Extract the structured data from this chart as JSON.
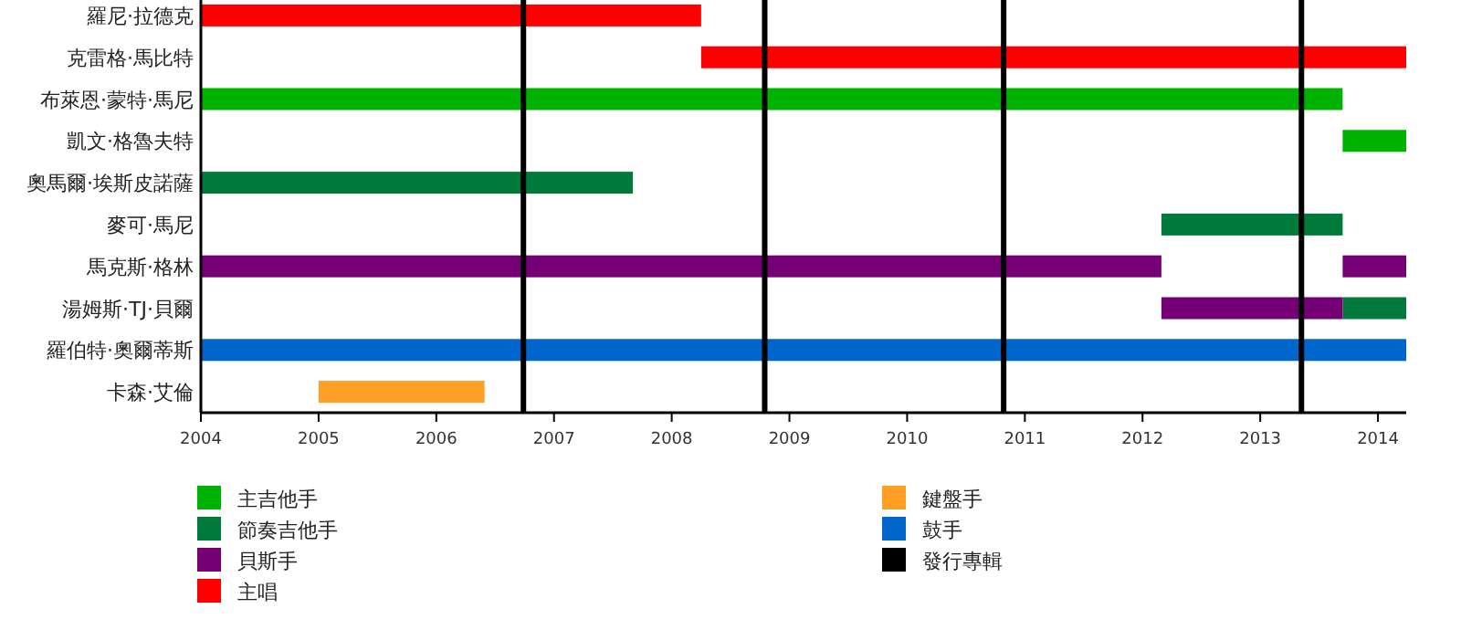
{
  "chart_data": {
    "type": "bar",
    "orientation": "horizontal",
    "categories": [
      "羅尼·拉德克",
      "克雷格·馬比特",
      "布萊恩·蒙特·馬尼",
      "凱文·格魯夫特",
      "奧馬爾·埃斯皮諾薩",
      "麥可·馬尼",
      "馬克斯·格林",
      "湯姆斯·TJ·貝爾",
      "羅伯特·奧爾蒂斯",
      "卡森·艾倫"
    ],
    "series": [
      {
        "name": "主吉他手",
        "color": "#00b200",
        "base": [
          null,
          null,
          2004,
          2013.7,
          null,
          null,
          null,
          null,
          null,
          null
        ],
        "values": [
          null,
          null,
          9.7,
          0.54,
          null,
          null,
          null,
          null,
          null,
          null
        ]
      },
      {
        "name": "節奏吉他手",
        "color": "#007a3a",
        "base": [
          null,
          null,
          null,
          null,
          2004,
          2012.16,
          null,
          2013.7,
          null,
          null
        ],
        "values": [
          null,
          null,
          null,
          null,
          3.67,
          1.54,
          null,
          0.54,
          null,
          null
        ]
      },
      {
        "name": "貝斯手",
        "color": "#750075",
        "base": [
          null,
          null,
          null,
          null,
          null,
          null,
          2004,
          2012.16,
          null,
          null
        ],
        "values": [
          null,
          null,
          null,
          null,
          null,
          null,
          8.16,
          1.54,
          null,
          null
        ]
      },
      {
        "color": "#750075",
        "base": [
          null,
          null,
          null,
          null,
          null,
          null,
          2013.7,
          null,
          null,
          null
        ],
        "values": [
          null,
          null,
          null,
          null,
          null,
          null,
          0.54,
          null,
          null,
          null
        ]
      },
      {
        "name": "主唱",
        "color": "#ff0000",
        "base": [
          2004,
          2008.25,
          null,
          null,
          null,
          null,
          null,
          null,
          null,
          null
        ],
        "values": [
          4.25,
          5.99,
          null,
          null,
          null,
          null,
          null,
          null,
          null,
          null
        ]
      },
      {
        "name": "鍵盤手",
        "color": "#ff9f25",
        "base": [
          null,
          null,
          null,
          null,
          null,
          null,
          null,
          null,
          null,
          2005
        ],
        "values": [
          null,
          null,
          null,
          null,
          null,
          null,
          null,
          null,
          null,
          1.41
        ]
      },
      {
        "name": "鼓手",
        "color": "#0066cc",
        "base": [
          null,
          null,
          null,
          null,
          null,
          null,
          null,
          null,
          2004,
          null
        ],
        "values": [
          null,
          null,
          null,
          null,
          null,
          null,
          null,
          null,
          10.24,
          null
        ]
      }
    ],
    "ref_lines": [
      {
        "axis": "x",
        "value": 2006.74,
        "label": "發行專輯",
        "color": "#000000"
      },
      {
        "axis": "x",
        "value": 2008.79,
        "color": "#000000"
      },
      {
        "axis": "x",
        "value": 2010.82,
        "color": "#000000"
      },
      {
        "axis": "x",
        "value": 2013.35,
        "color": "#000000"
      }
    ],
    "xlim": [
      2004,
      2014.24
    ],
    "xticks": [
      2004,
      2005,
      2006,
      2007,
      2008,
      2009,
      2010,
      2011,
      2012,
      2013,
      2014
    ],
    "grid": false,
    "legend": "bottom"
  }
}
